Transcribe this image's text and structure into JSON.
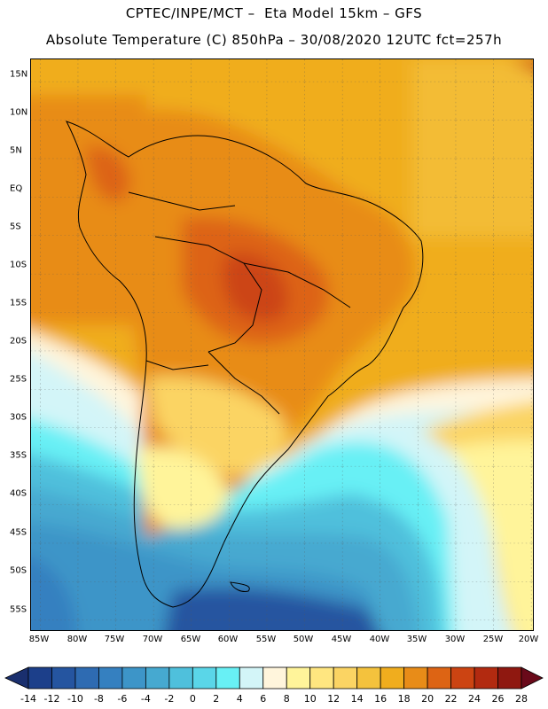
{
  "title_line1": "CPTEC/INPE/MCT –  Eta Model 15km – GFS",
  "title_line2": "Absolute Temperature (C) 850hPa – 30/08/2020 12UTC fct=257h",
  "lat_labels": [
    "15N",
    "10N",
    "5N",
    "EQ",
    "5S",
    "10S",
    "15S",
    "20S",
    "25S",
    "30S",
    "35S",
    "40S",
    "45S",
    "50S",
    "55S"
  ],
  "lon_labels": [
    "85W",
    "80W",
    "75W",
    "70W",
    "65W",
    "60W",
    "55W",
    "50W",
    "45W",
    "40W",
    "35W",
    "30W",
    "25W",
    "20W"
  ],
  "colorbar": {
    "labels": [
      "-14",
      "-12",
      "-10",
      "-8",
      "-6",
      "-4",
      "-2",
      "0",
      "2",
      "4",
      "6",
      "8",
      "10",
      "12",
      "14",
      "16",
      "18",
      "20",
      "22",
      "24",
      "26",
      "28"
    ],
    "colors": [
      "#1c3f8a",
      "#2555a0",
      "#2e6bb2",
      "#3580c0",
      "#3d95c8",
      "#46a9d0",
      "#4fc0dc",
      "#5ad6e8",
      "#68f0f5",
      "#d3f5f8",
      "#fff5dc",
      "#fff49a",
      "#ffe680",
      "#fbd463",
      "#f4c23d",
      "#f0ad1e",
      "#e88c18",
      "#dd6414",
      "#cc4412",
      "#b22a10",
      "#8f1810"
    ],
    "under_color": "#1a2f6e",
    "over_color": "#6a0a1a"
  }
}
